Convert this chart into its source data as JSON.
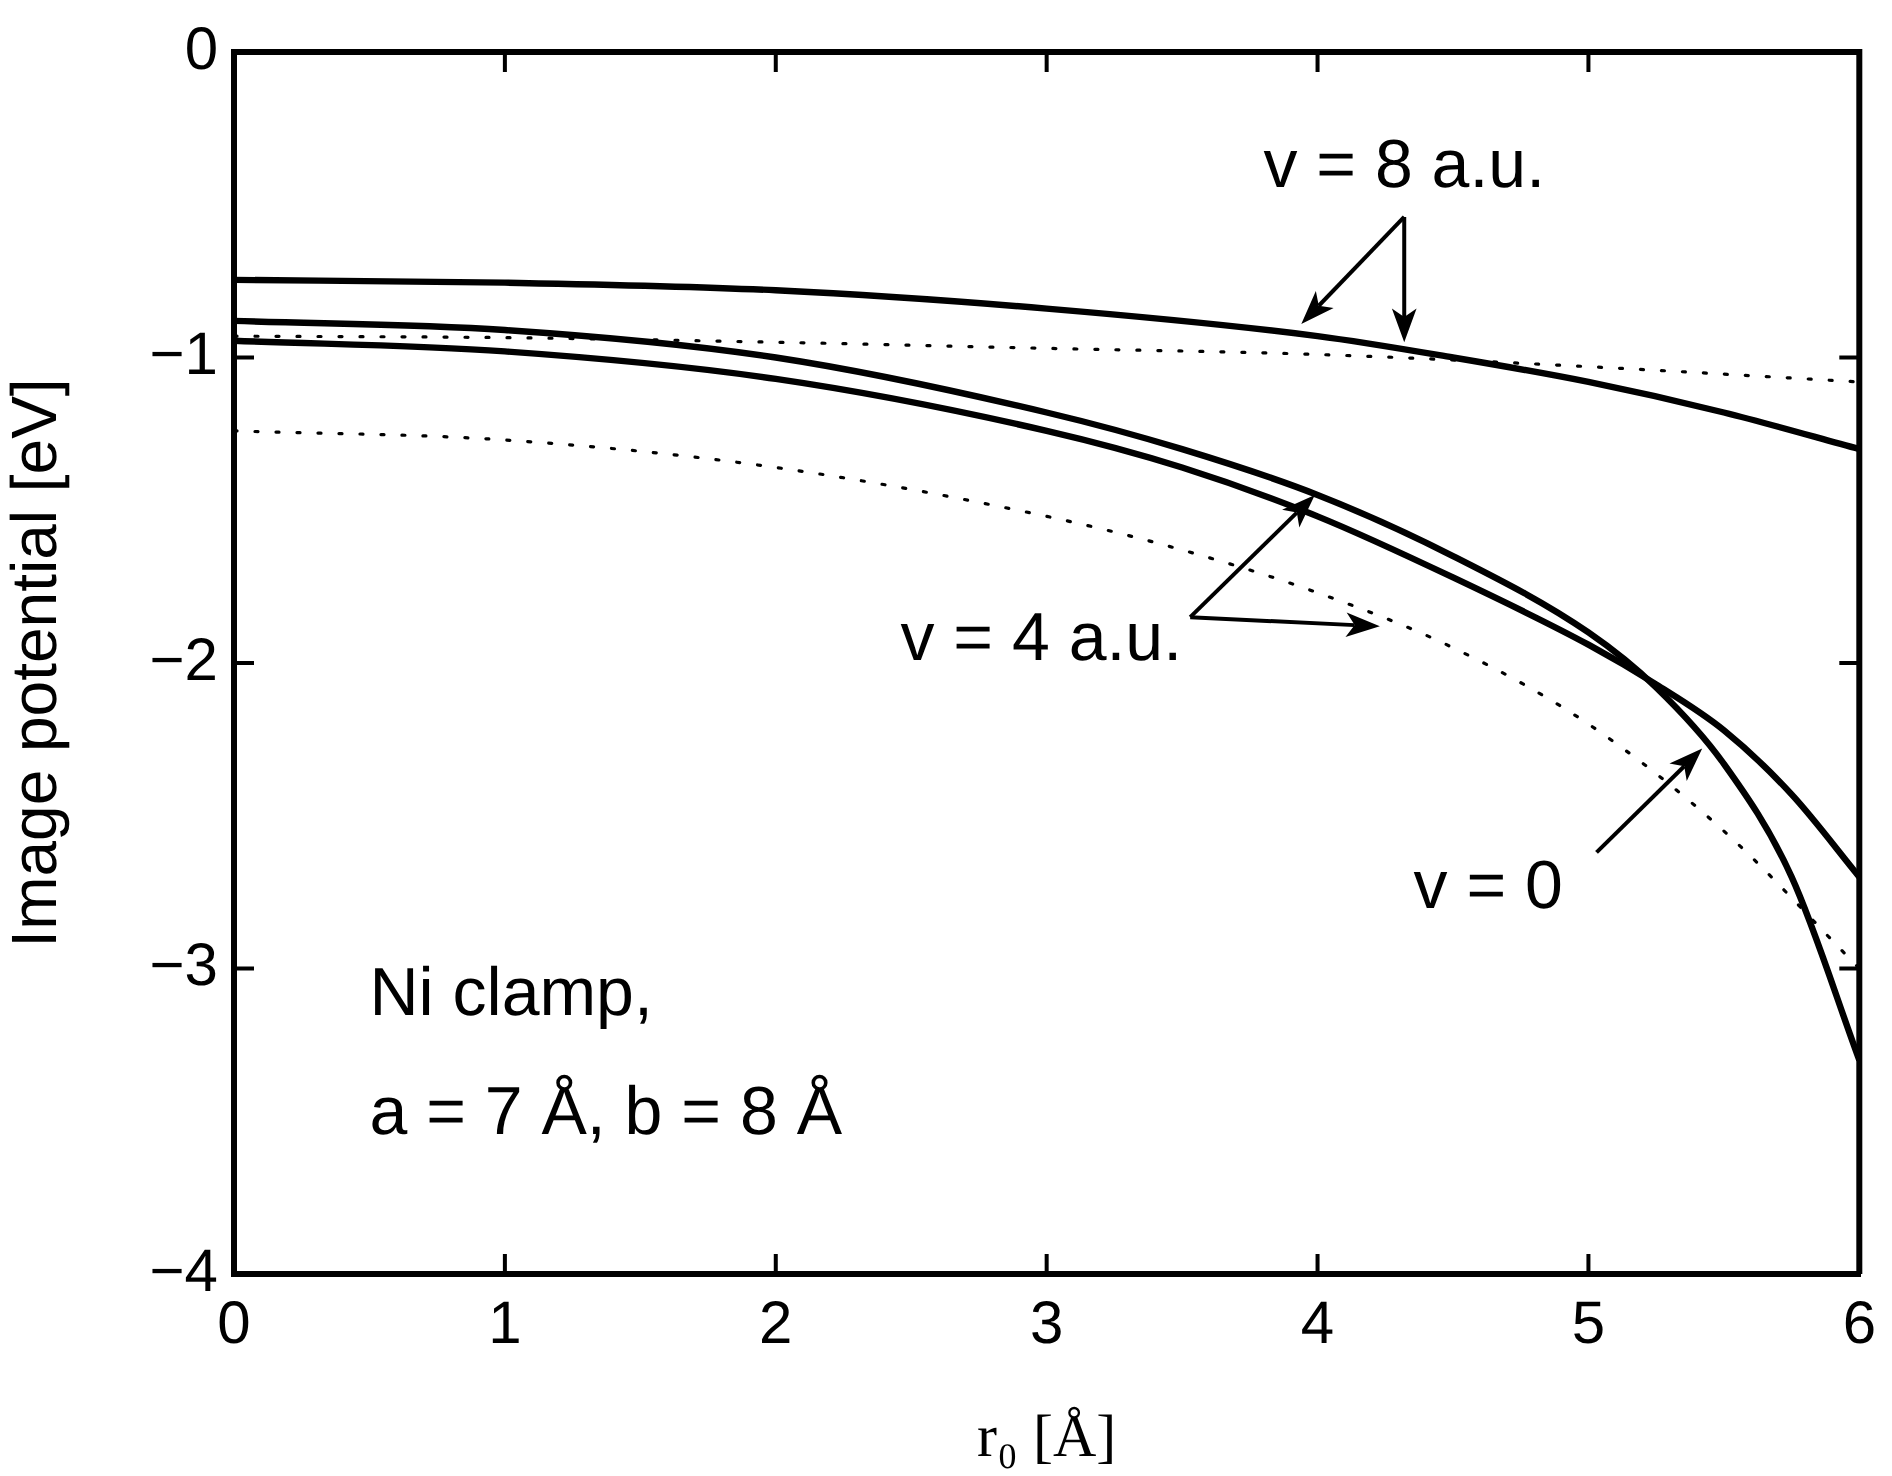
{
  "chart_data": {
    "type": "line",
    "ylabel": "Image potential [eV]",
    "xlabel": "r₀ [Å]",
    "xlim": [
      0,
      6
    ],
    "xticks": [
      0,
      1,
      2,
      3,
      4,
      5,
      6
    ],
    "ylim": [
      -4,
      0
    ],
    "yticks": [
      0,
      -1,
      -2,
      -3,
      -4
    ],
    "grid": false,
    "legend": false,
    "marker": "none",
    "series": [
      {
        "color": "#000000",
        "line_style": "solid",
        "x": [
          0,
          1,
          2,
          3,
          4,
          4.5,
          5,
          5.5,
          6
        ],
        "values": [
          -0.746,
          -0.755,
          -0.78,
          -0.84,
          -0.93,
          -1.0,
          -1.08,
          -1.18,
          -1.3
        ]
      },
      {
        "color": "#000000",
        "line_style": "solid",
        "x": [
          0,
          1,
          2,
          3,
          3.5,
          4,
          4.5,
          5,
          5.25,
          5.5,
          5.75,
          6
        ],
        "values": [
          -0.88,
          -0.91,
          -1.0,
          -1.18,
          -1.3,
          -1.45,
          -1.65,
          -1.9,
          -2.08,
          -2.33,
          -2.7,
          -3.3
        ]
      },
      {
        "color": "#000000",
        "line_style": "solid",
        "x": [
          0,
          1,
          2,
          3,
          3.5,
          4,
          4.5,
          5,
          5.25,
          5.5,
          5.75,
          6
        ],
        "values": [
          -0.945,
          -0.98,
          -1.07,
          -1.24,
          -1.36,
          -1.52,
          -1.72,
          -1.94,
          -2.07,
          -2.22,
          -2.43,
          -2.7
        ]
      },
      {
        "color": "#000000",
        "line_style": "dotted",
        "x": [
          0,
          1,
          2,
          3,
          4,
          5,
          6
        ],
        "values": [
          -0.93,
          -0.935,
          -0.95,
          -0.97,
          -0.99,
          -1.03,
          -1.08
        ]
      },
      {
        "color": "#000000",
        "line_style": "dotted",
        "x": [
          0,
          1,
          2,
          3,
          3.5,
          4,
          4.5,
          5,
          5.5,
          6
        ],
        "values": [
          -1.24,
          -1.27,
          -1.36,
          -1.52,
          -1.63,
          -1.77,
          -1.95,
          -2.2,
          -2.55,
          -3.0
        ]
      }
    ],
    "annotations": [
      {
        "text": "v = 8 a.u.",
        "x": 4.32,
        "y": -0.95
      },
      {
        "text": "v = 4 a.u.",
        "x": 3.99,
        "y": -1.45
      },
      {
        "text": "v = 0",
        "x": 5.42,
        "y": -2.28
      },
      "Ni clamp,",
      "a = 7 Å, b = 8 Å"
    ]
  }
}
